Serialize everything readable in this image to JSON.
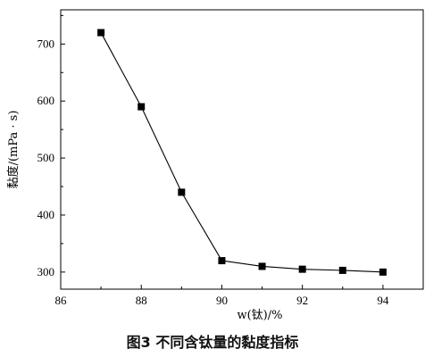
{
  "caption": "图3  不同含钛量的黏度指标",
  "chart_data": {
    "type": "line",
    "title": "",
    "xlabel": "w(钛)/%",
    "ylabel": "黏度/(mPa · s)",
    "xlim": [
      86,
      95
    ],
    "ylim": [
      270,
      760
    ],
    "xticks": [
      86,
      88,
      90,
      92,
      94
    ],
    "yticks": [
      300,
      400,
      500,
      600,
      700
    ],
    "grid": false,
    "series": [
      {
        "marker": "square",
        "color": "#000000",
        "x": [
          87,
          88,
          89,
          90,
          91,
          92,
          93,
          94
        ],
        "y": [
          720,
          590,
          440,
          320,
          310,
          305,
          303,
          300
        ]
      }
    ]
  }
}
